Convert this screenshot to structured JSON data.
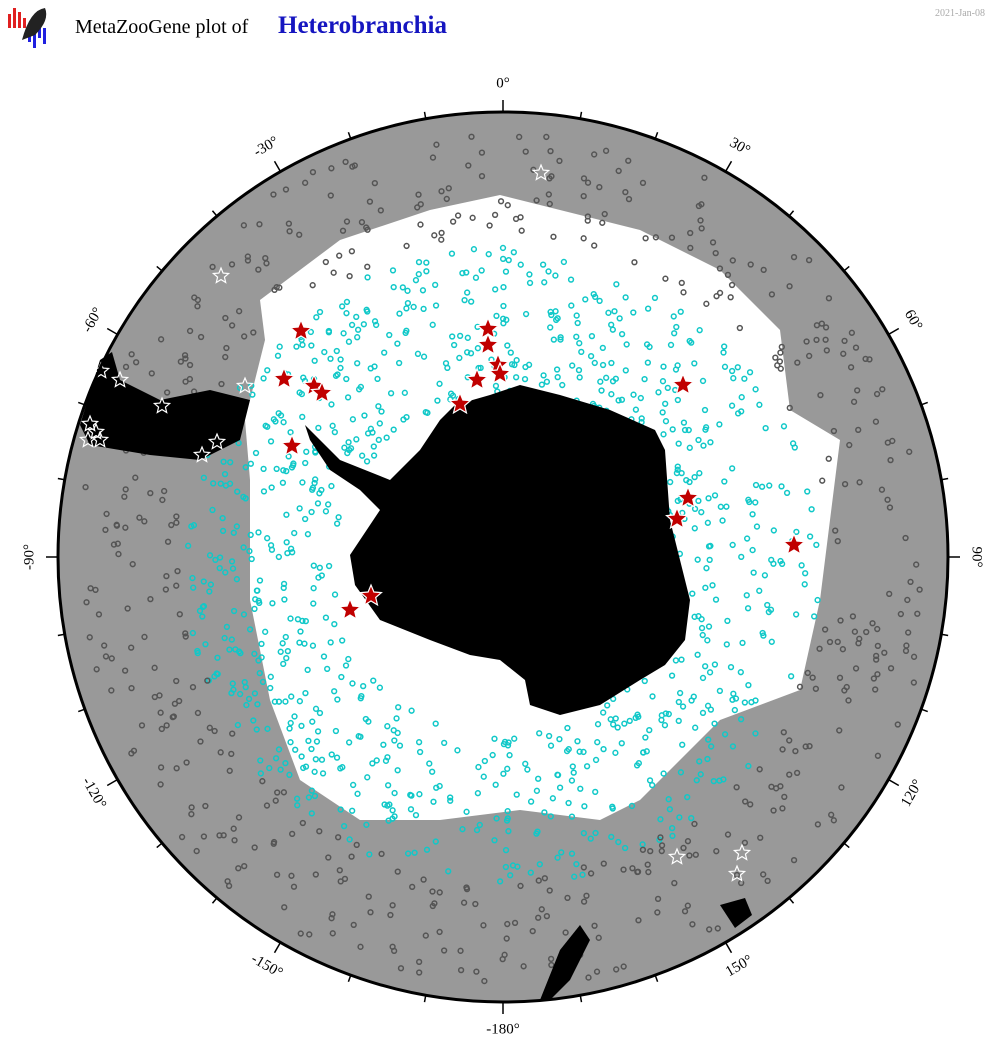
{
  "header": {
    "title_prefix": "MetaZooGene plot of",
    "taxon": "Heterobranchia",
    "date": "2021-Jan-08"
  },
  "map": {
    "longitude_labels": [
      "0°",
      "30°",
      "60°",
      "90°",
      "120°",
      "150°",
      "-180°",
      "-150°",
      "-120°",
      "-90°",
      "-60°",
      "-30°"
    ]
  }
}
